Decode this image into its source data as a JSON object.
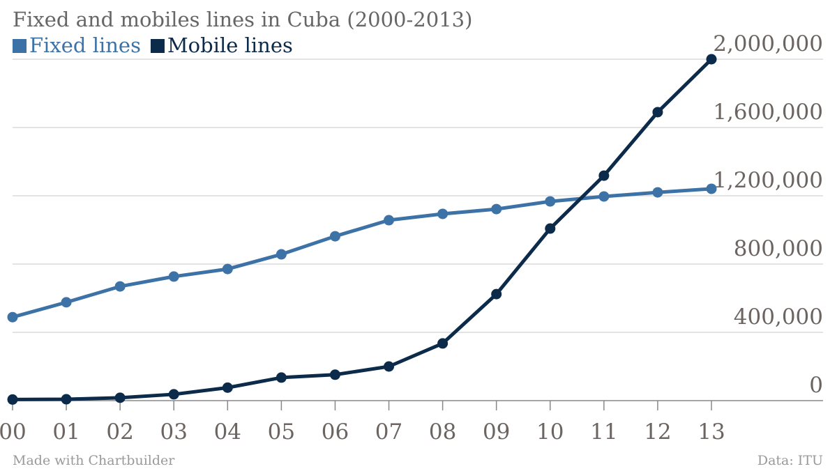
{
  "chart_data": {
    "type": "line",
    "title": "Fixed and mobiles lines in Cuba (2000-2013)",
    "categories": [
      "00",
      "01",
      "02",
      "03",
      "04",
      "05",
      "06",
      "07",
      "08",
      "09",
      "10",
      "11",
      "12",
      "13"
    ],
    "series": [
      {
        "name": "Fixed lines",
        "color": "#3d72a6",
        "values": [
          489000,
          576000,
          669000,
          727000,
          771000,
          857000,
          963000,
          1057000,
          1094000,
          1122000,
          1167000,
          1196000,
          1220000,
          1241000
        ]
      },
      {
        "name": "Mobile lines",
        "color": "#0c2a4a",
        "values": [
          6500,
          8000,
          17000,
          37000,
          76000,
          135000,
          152000,
          200000,
          335000,
          624000,
          1008000,
          1318000,
          1690000,
          2000000
        ]
      }
    ],
    "ylim": [
      0,
      2000000
    ],
    "yticks": [
      0,
      400000,
      800000,
      1200000,
      1600000,
      2000000
    ],
    "ytick_labels": [
      "0",
      "400,000",
      "800,000",
      "1,200,000",
      "1,600,000",
      "2,000,000"
    ],
    "grid": true,
    "legend_position": "top-left",
    "y_axis_side": "right"
  },
  "footer": {
    "left": "Made with Chartbuilder",
    "right": "Data: ITU"
  }
}
